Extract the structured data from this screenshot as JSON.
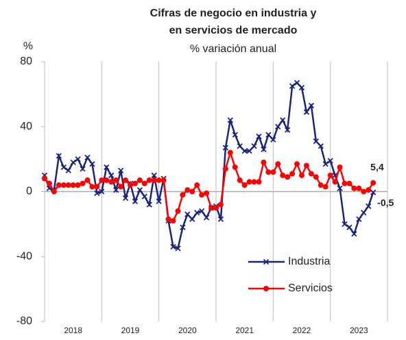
{
  "chart_data": {
    "type": "line",
    "title": [
      "Cifras de negocio en industria y",
      "en servicios de mercado"
    ],
    "subtitle": "% variación anual",
    "y_label": "%",
    "categories": [
      null,
      null,
      null,
      null,
      null,
      null,
      "2018",
      null,
      null,
      null,
      null,
      null,
      null,
      null,
      null,
      null,
      null,
      null,
      "2019",
      null,
      null,
      null,
      null,
      null,
      null,
      null,
      null,
      null,
      null,
      null,
      "2020",
      null,
      null,
      null,
      null,
      null,
      null,
      null,
      null,
      null,
      null,
      null,
      "2021",
      null,
      null,
      null,
      null,
      null,
      null,
      null,
      null,
      null,
      null,
      null,
      "2022",
      null,
      null,
      null,
      null,
      null,
      null,
      null,
      null,
      null,
      null,
      null,
      "2023",
      null,
      null,
      null
    ],
    "series": [
      {
        "name": "Industria",
        "color": "#1a237e",
        "marker": "x",
        "end_label": "-0,5",
        "end_label_color": "#2e6475",
        "values": [
          10,
          2,
          1,
          22,
          15,
          13,
          18,
          20,
          14,
          21,
          17,
          -1,
          0,
          15,
          10,
          1,
          13,
          -4,
          5,
          -6,
          1,
          -3,
          -8,
          10,
          -6,
          8,
          -18,
          -34,
          -35,
          -22,
          -14,
          -17,
          -13,
          -12,
          -16,
          -10,
          -9,
          -17,
          27,
          44,
          35,
          28,
          25,
          25,
          28,
          34,
          26,
          35,
          32,
          40,
          44,
          38,
          65,
          67,
          64,
          49,
          53,
          31,
          28,
          17,
          19,
          10,
          2,
          -20,
          -22,
          -26,
          -17,
          -13,
          -9,
          -0.5
        ]
      },
      {
        "name": "Servicios",
        "color": "#ff0000",
        "marker": "circle",
        "end_label": "5,4",
        "end_label_color": "#ff0000",
        "values": [
          8,
          5,
          0,
          4,
          4,
          4,
          4,
          4,
          5,
          7,
          3,
          3,
          7,
          7,
          6,
          7,
          3,
          7,
          4,
          5,
          7,
          5,
          7,
          7,
          7,
          7,
          -17,
          -18,
          -12,
          -2,
          1,
          0,
          4,
          -2,
          -1,
          -10,
          -10,
          -8,
          14,
          24,
          15,
          7,
          4,
          6,
          6,
          6,
          18,
          12,
          12,
          17,
          10,
          9,
          11,
          17,
          10,
          16,
          11,
          9,
          4,
          3,
          10,
          6,
          15,
          5,
          5,
          2,
          2,
          0,
          1,
          5.4
        ]
      }
    ],
    "ylim": [
      -80,
      80
    ],
    "yticks": [
      80,
      40,
      0,
      -40,
      -80
    ],
    "zero_line": true,
    "xgrid": true,
    "legend": "lower-right"
  }
}
